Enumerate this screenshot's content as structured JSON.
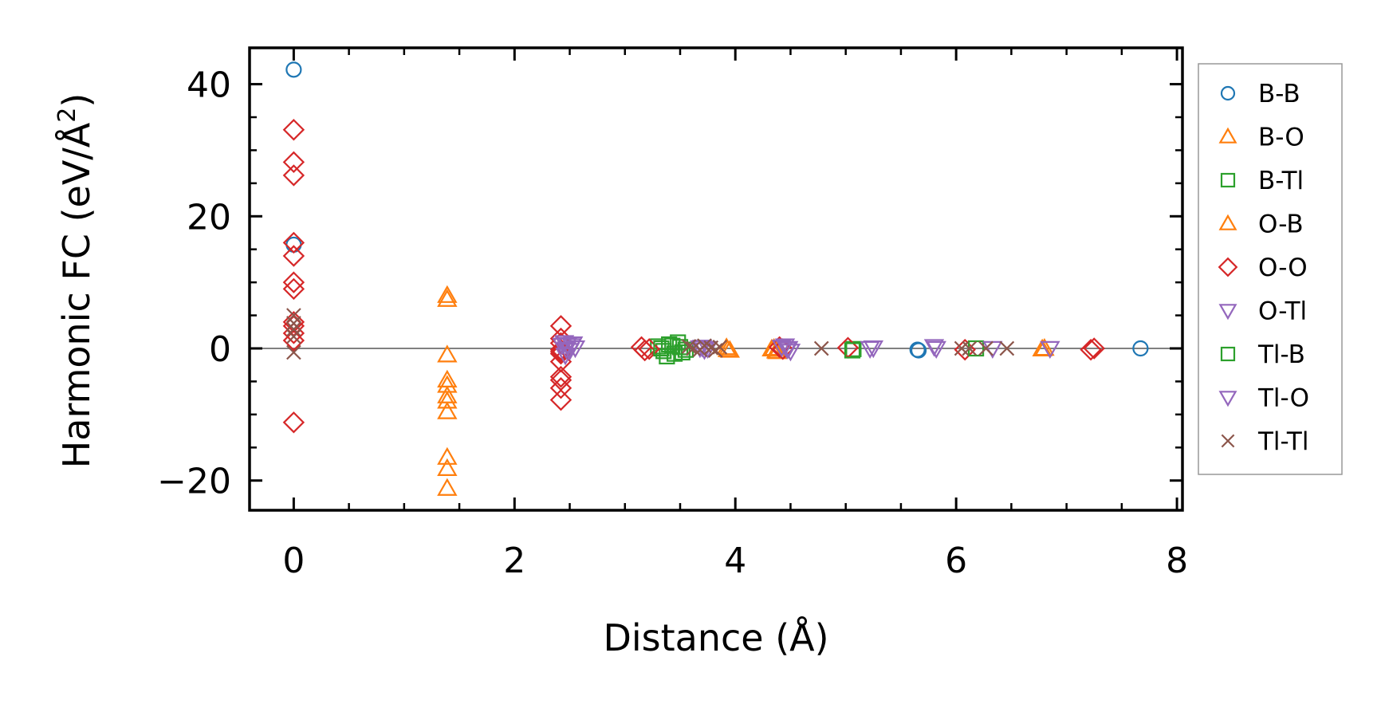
{
  "chart_data": {
    "type": "scatter",
    "xlabel": "Distance (Å)",
    "ylabel_main": "Harmonic FC (eV/Å",
    "ylabel_sup": "2",
    "ylabel_close": ")",
    "xlim": [
      -0.4,
      8.05
    ],
    "ylim": [
      -24.5,
      45.5
    ],
    "xticks": [
      0,
      2,
      4,
      6,
      8
    ],
    "xtick_labels": [
      "0",
      "2",
      "4",
      "6",
      "8"
    ],
    "yticks": [
      -20,
      0,
      20,
      40
    ],
    "ytick_labels": [
      "−20",
      "0",
      "20",
      "40"
    ],
    "xminor": [
      0.5,
      1,
      1.5,
      2.5,
      3,
      3.5,
      4.5,
      5,
      5.5,
      6.5,
      7,
      7.5
    ],
    "yminor": [
      -15,
      -10,
      -5,
      5,
      10,
      15,
      25,
      30,
      35
    ],
    "zero_line": true,
    "legend_position": "outside-right",
    "series": [
      {
        "name": "B-B",
        "marker": "circle",
        "color": "#1f77b4",
        "x": [
          0,
          0,
          5.65,
          5.66,
          7.67
        ],
        "y": [
          42.2,
          15.7,
          -0.2,
          -0.3,
          0.0
        ]
      },
      {
        "name": "B-O",
        "marker": "triangle-up",
        "color": "#ff7f0e",
        "x": [
          1.39,
          1.39,
          1.39,
          1.39,
          1.39,
          1.39,
          1.39,
          1.39,
          1.39,
          1.39,
          1.39,
          3.92,
          3.95,
          4.35,
          4.37,
          6.78
        ],
        "y": [
          8.0,
          7.4,
          -1.0,
          -4.8,
          -5.6,
          -7.2,
          -8.0,
          -9.6,
          -16.5,
          -18.2,
          -21.2,
          0.1,
          -0.3,
          0.0,
          -0.4,
          -0.1
        ]
      },
      {
        "name": "B-Tl",
        "marker": "square",
        "color": "#2ca02c",
        "x": [
          3.3,
          3.35,
          3.4,
          3.45,
          3.5,
          3.55,
          3.38,
          3.48,
          5.07
        ],
        "y": [
          0.3,
          -0.4,
          0.6,
          -0.8,
          0.2,
          -0.2,
          -1.2,
          0.9,
          -0.1
        ]
      },
      {
        "name": "O-B",
        "marker": "triangle-up",
        "color": "#ff7f0e",
        "x": [
          3.93,
          4.33,
          4.38,
          6.8
        ],
        "y": [
          -0.2,
          -0.1,
          -0.5,
          0.0
        ]
      },
      {
        "name": "O-O",
        "marker": "diamond",
        "color": "#d62728",
        "x": [
          0,
          0,
          0,
          0,
          0,
          0,
          0,
          0,
          0,
          0,
          0,
          0,
          2.42,
          2.42,
          2.42,
          2.42,
          2.42,
          2.42,
          2.42,
          2.42,
          2.42,
          2.42,
          2.42,
          3.15,
          3.18,
          3.22,
          4.4,
          4.43,
          5.02,
          6.08,
          7.22,
          7.25
        ],
        "y": [
          33.1,
          28.2,
          26.2,
          16.0,
          14.0,
          10.0,
          9.0,
          4.0,
          2.3,
          1.2,
          -11.2,
          3.4,
          3.4,
          1.5,
          0.8,
          -0.5,
          -2.0,
          -4.3,
          -4.8,
          -6.0,
          -7.8,
          -0.8,
          -0.2,
          0.2,
          -0.3,
          -0.1,
          0.2,
          -0.1,
          0.1,
          -0.2,
          -0.2,
          0.0
        ]
      },
      {
        "name": "O-Tl",
        "marker": "triangle-down",
        "color": "#9467bd",
        "x": [
          2.45,
          2.48,
          2.52,
          2.55,
          2.5,
          2.46,
          3.7,
          3.72,
          4.45,
          4.48,
          4.5,
          5.8,
          5.82,
          5.22
        ],
        "y": [
          0.9,
          0.6,
          0.4,
          0.1,
          -0.3,
          -1.0,
          0.2,
          -0.2,
          0.4,
          0.0,
          -0.4,
          0.3,
          0.0,
          0.0
        ]
      },
      {
        "name": "Tl-B",
        "marker": "square",
        "color": "#2ca02c",
        "x": [
          3.33,
          3.43,
          3.52,
          5.06,
          6.18
        ],
        "y": [
          0.0,
          0.4,
          -0.6,
          -0.3,
          0.0
        ]
      },
      {
        "name": "Tl-O",
        "marker": "triangle-down",
        "color": "#9467bd",
        "x": [
          2.43,
          2.47,
          2.53,
          3.68,
          3.75,
          4.42,
          4.47,
          5.25,
          6.33,
          6.85
        ],
        "y": [
          0.5,
          -0.1,
          0.7,
          0.1,
          0.0,
          0.2,
          -0.1,
          0.1,
          0.0,
          0.0
        ]
      },
      {
        "name": "Tl-Tl",
        "marker": "x",
        "color": "#8c564b",
        "x": [
          0,
          0,
          0,
          0,
          0,
          3.58,
          3.62,
          3.68,
          3.72,
          3.78,
          3.82,
          3.86,
          4.78,
          6.05,
          6.12,
          6.27,
          6.46
        ],
        "y": [
          5.0,
          3.8,
          2.9,
          1.8,
          -0.6,
          0.3,
          0.0,
          -0.2,
          0.4,
          0.1,
          -0.3,
          0.2,
          0.0,
          0.0,
          0.0,
          0.0,
          0.0
        ]
      }
    ]
  }
}
